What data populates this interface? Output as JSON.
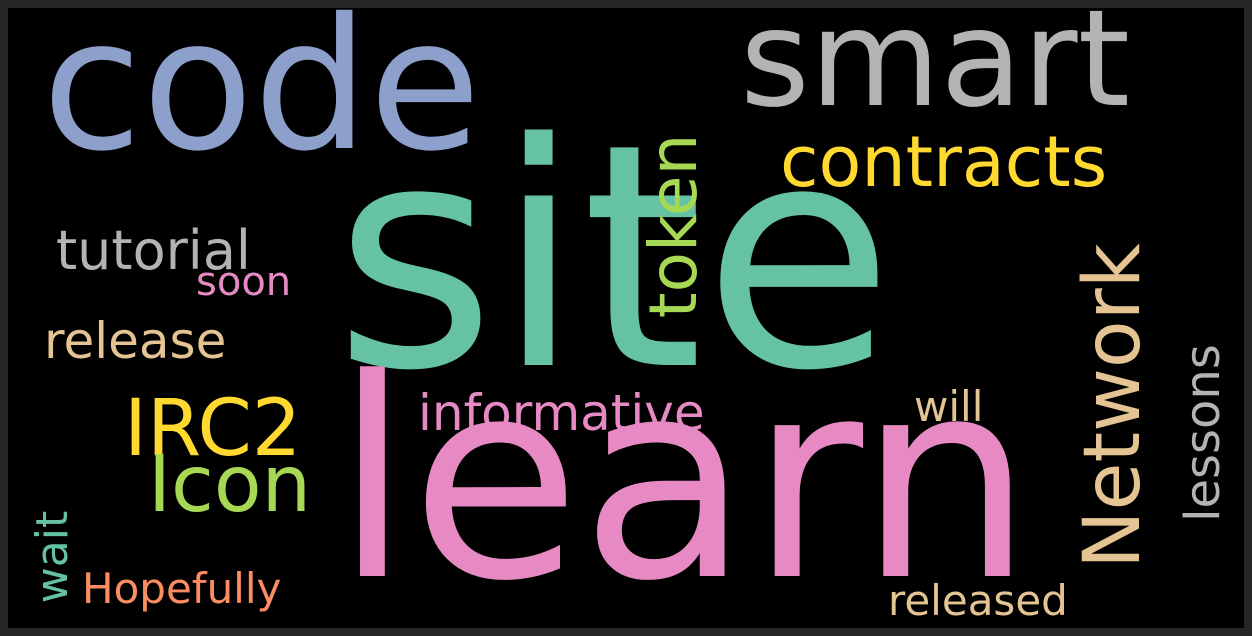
{
  "words": [
    {
      "key": "site",
      "text": "site",
      "color": "#66c2a5"
    },
    {
      "key": "learn",
      "text": "learn",
      "color": "#e78ac3"
    },
    {
      "key": "code",
      "text": "code",
      "color": "#8da0cb"
    },
    {
      "key": "smart",
      "text": "smart",
      "color": "#b3b3b3"
    },
    {
      "key": "contracts",
      "text": "contracts",
      "color": "#ffd92f"
    },
    {
      "key": "token",
      "text": "token",
      "color": "#a6d854"
    },
    {
      "key": "network",
      "text": "Network",
      "color": "#e5c494"
    },
    {
      "key": "lessons",
      "text": "lessons",
      "color": "#b3b3b3"
    },
    {
      "key": "tutorial",
      "text": "tutorial",
      "color": "#b3b3b3"
    },
    {
      "key": "soon",
      "text": "soon",
      "color": "#e78ac3"
    },
    {
      "key": "release",
      "text": "release",
      "color": "#e5c494"
    },
    {
      "key": "irc2",
      "text": "IRC2",
      "color": "#ffd92f"
    },
    {
      "key": "informative",
      "text": "informative",
      "color": "#e78ac3"
    },
    {
      "key": "will",
      "text": "will",
      "color": "#e5c494"
    },
    {
      "key": "icon",
      "text": "Icon",
      "color": "#a6d854"
    },
    {
      "key": "wait",
      "text": "wait",
      "color": "#66c2a5"
    },
    {
      "key": "hopefully",
      "text": "Hopefully",
      "color": "#fc8d62"
    },
    {
      "key": "released",
      "text": "released",
      "color": "#e5c494"
    }
  ]
}
